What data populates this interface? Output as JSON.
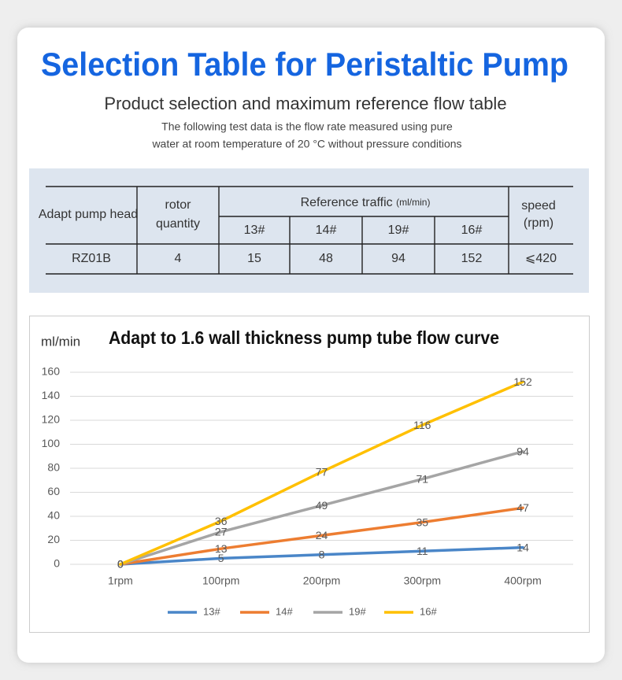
{
  "header": {
    "title": "Selection Table for Peristaltic Pump",
    "subtitle": "Product selection and maximum reference flow table",
    "note": [
      "The following test data is the flow rate measured using pure",
      "water at room temperature of 20 °C without pressure conditions"
    ]
  },
  "table": {
    "columns": {
      "head": "Adapt pump head",
      "rotor": [
        "rotor",
        "quantity"
      ],
      "traffic": "Reference traffic",
      "unit": "(ml/min)",
      "tubes": [
        "13#",
        "14#",
        "19#",
        "16#"
      ],
      "speed": [
        "speed",
        "(rpm)"
      ]
    },
    "rows": [
      [
        "RZ01B",
        4,
        15,
        48,
        94,
        152,
        "⩽420"
      ]
    ]
  },
  "chart_data": {
    "type": "line",
    "title": "Adapt to 1.6 wall thickness pump tube flow curve",
    "y_label": "ml/min",
    "categories": [
      "1rpm",
      "100rpm",
      "200rpm",
      "300rpm",
      "400rpm"
    ],
    "series": [
      {
        "name": "13#",
        "color": "#4a86c8",
        "values": [
          0,
          5,
          8,
          11,
          14
        ]
      },
      {
        "name": "14#",
        "color": "#ed7d31",
        "values": [
          0,
          13,
          24,
          35,
          47
        ]
      },
      {
        "name": "19#",
        "color": "#a5a5a5",
        "values": [
          0,
          27,
          49,
          71,
          94
        ]
      },
      {
        "name": "16#",
        "color": "#ffc000",
        "values": [
          0,
          36,
          77,
          116,
          152
        ]
      }
    ],
    "ylim": [
      0,
      160
    ],
    "yticks": [
      0,
      20,
      40,
      60,
      80,
      100,
      120,
      140,
      160
    ],
    "grid": true,
    "legend": "bottom"
  }
}
